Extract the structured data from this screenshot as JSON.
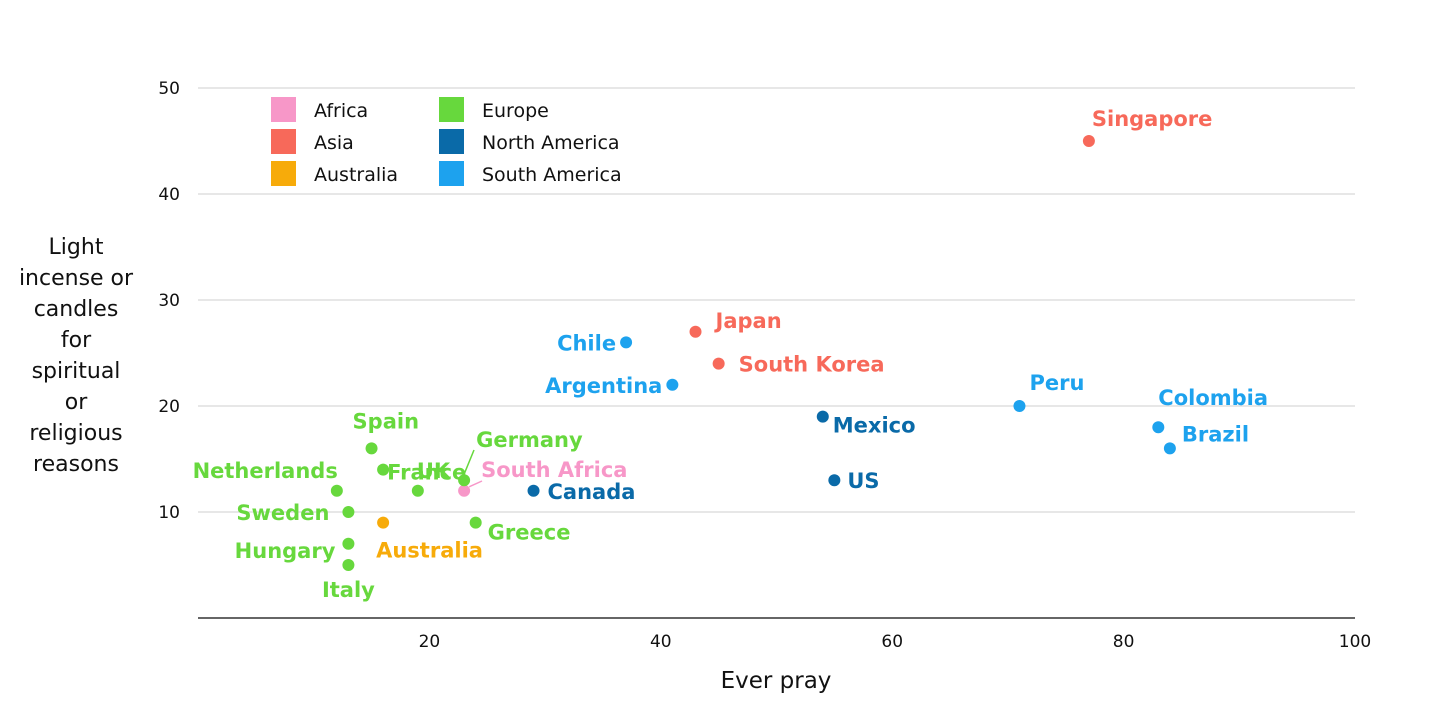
{
  "chart_data": {
    "type": "scatter",
    "title": "",
    "xlabel": "Ever pray",
    "ylabel_lines": [
      "Light",
      "incense or",
      "candles",
      "for",
      "spiritual",
      "or",
      "religious",
      "reasons"
    ],
    "xlim": [
      0,
      100
    ],
    "ylim": [
      0,
      50
    ],
    "xticks": [
      20,
      40,
      60,
      80,
      100
    ],
    "yticks": [
      10,
      20,
      30,
      40,
      50
    ],
    "grid": "horizontal",
    "legend_position": "top-left",
    "regions": [
      {
        "name": "Africa",
        "color": "#f797c8"
      },
      {
        "name": "Asia",
        "color": "#f7695a"
      },
      {
        "name": "Australia",
        "color": "#f7ab0a"
      },
      {
        "name": "Europe",
        "color": "#67d83d"
      },
      {
        "name": "North America",
        "color": "#0a6aa8"
      },
      {
        "name": "South America",
        "color": "#1da2ee"
      }
    ],
    "points": [
      {
        "label": "Singapore",
        "region": "Asia",
        "x": 77,
        "y": 45
      },
      {
        "label": "Japan",
        "region": "Asia",
        "x": 43,
        "y": 27
      },
      {
        "label": "South Korea",
        "region": "Asia",
        "x": 45,
        "y": 24
      },
      {
        "label": "Chile",
        "region": "South America",
        "x": 37,
        "y": 26
      },
      {
        "label": "Argentina",
        "region": "South America",
        "x": 41,
        "y": 22
      },
      {
        "label": "Peru",
        "region": "South America",
        "x": 71,
        "y": 20
      },
      {
        "label": "Colombia",
        "region": "South America",
        "x": 83,
        "y": 18
      },
      {
        "label": "Brazil",
        "region": "South America",
        "x": 84,
        "y": 16
      },
      {
        "label": "Mexico",
        "region": "North America",
        "x": 54,
        "y": 19
      },
      {
        "label": "US",
        "region": "North America",
        "x": 55,
        "y": 13
      },
      {
        "label": "Canada",
        "region": "North America",
        "x": 29,
        "y": 12
      },
      {
        "label": "South Africa",
        "region": "Africa",
        "x": 23,
        "y": 12
      },
      {
        "label": "Germany",
        "region": "Europe",
        "x": 23,
        "y": 13
      },
      {
        "label": "Spain",
        "region": "Europe",
        "x": 15,
        "y": 16
      },
      {
        "label": "France",
        "region": "Europe",
        "x": 16,
        "y": 14
      },
      {
        "label": "UK",
        "region": "Europe",
        "x": 19,
        "y": 12
      },
      {
        "label": "Netherlands",
        "region": "Europe",
        "x": 12,
        "y": 12
      },
      {
        "label": "Sweden",
        "region": "Europe",
        "x": 13,
        "y": 10
      },
      {
        "label": "Hungary",
        "region": "Europe",
        "x": 13,
        "y": 7
      },
      {
        "label": "Italy",
        "region": "Europe",
        "x": 13,
        "y": 5
      },
      {
        "label": "Greece",
        "region": "Europe",
        "x": 24,
        "y": 9
      },
      {
        "label": "Australia",
        "region": "Australia",
        "x": 16,
        "y": 9
      }
    ]
  }
}
